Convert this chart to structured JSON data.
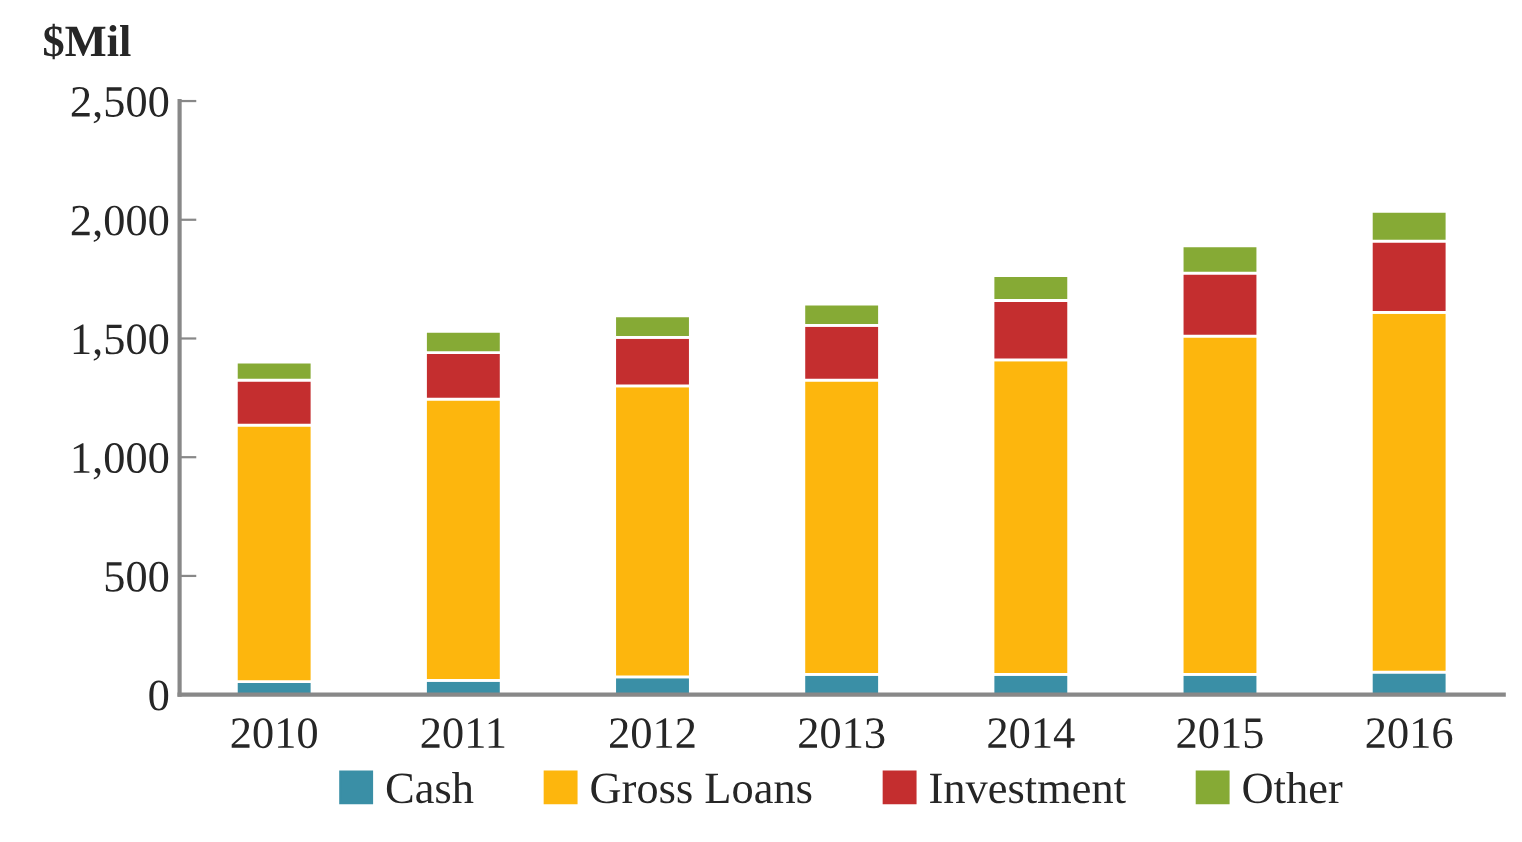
{
  "chart_data": {
    "type": "bar",
    "stacked": true,
    "ylabel": "$Mil",
    "categories": [
      "2010",
      "2011",
      "2012",
      "2013",
      "2014",
      "2015",
      "2016"
    ],
    "series": [
      {
        "name": "Cash",
        "color": "#3a8fa6",
        "values": [
          55,
          60,
          75,
          85,
          85,
          85,
          95
        ]
      },
      {
        "name": "Gross Loans",
        "color": "#fdb60d",
        "values": [
          1080,
          1185,
          1225,
          1240,
          1325,
          1425,
          1515
        ]
      },
      {
        "name": "Investment",
        "color": "#c42e2f",
        "values": [
          190,
          195,
          205,
          230,
          250,
          265,
          300
        ]
      },
      {
        "name": "Other",
        "color": "#86aa35",
        "values": [
          75,
          90,
          90,
          90,
          105,
          115,
          125
        ]
      }
    ],
    "ylim": [
      0,
      2500
    ],
    "yticks": [
      0,
      500,
      {
        "value": 1000,
        "label": "1,000"
      },
      {
        "value": 1500,
        "label": "1,500"
      },
      {
        "value": 2000,
        "label": "2,000"
      },
      {
        "value": 2500,
        "label": "2,500"
      }
    ],
    "grid": false,
    "legend": "bottom"
  }
}
